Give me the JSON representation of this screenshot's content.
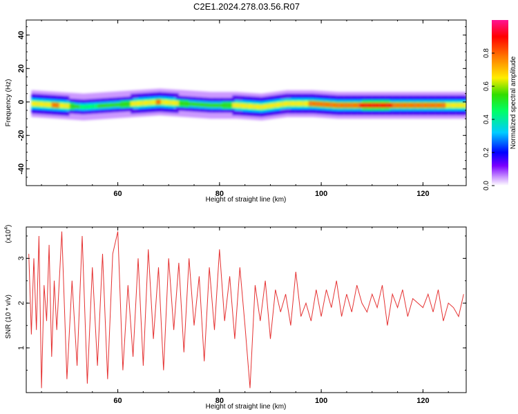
{
  "title": "C2E1.2024.278.03.56.R07",
  "colors": {
    "snr_line": "#e53030",
    "axis": "#000000"
  },
  "chart_data": [
    {
      "type": "heatmap",
      "xlabel": "Height of straight line (km)",
      "ylabel": "Frequency (Hz)",
      "xlim": [
        42,
        128.5
      ],
      "ylim": [
        -50,
        49
      ],
      "x_ticks": [
        "60",
        "80",
        "100",
        "120"
      ],
      "y_ticks": [
        "40",
        "20",
        "0",
        "-20",
        "-40"
      ],
      "colorbar": {
        "label": "Normalized spectral amplitude",
        "range": [
          0,
          1
        ],
        "ticks": [
          "0.0",
          "0.2",
          "0.4",
          "0.6",
          "0.8"
        ],
        "colormap": [
          "#ffffff",
          "#cc99ff",
          "#5500ee",
          "#0000ff",
          "#00ccff",
          "#00ff66",
          "#33dd00",
          "#ffee00",
          "#ff7700",
          "#ff0000",
          "#ff1493"
        ]
      },
      "ridge": {
        "description_free": true,
        "x": [
          43,
          48,
          53,
          58,
          63,
          68,
          73,
          78,
          83,
          88,
          93,
          98,
          103,
          108,
          113,
          118,
          123,
          128
        ],
        "center_hz": [
          -1,
          -2,
          -3,
          -2,
          -1,
          0,
          -1,
          -2,
          -2,
          -3,
          -1,
          -1,
          -2,
          -2,
          -2,
          -2,
          -2,
          -2
        ],
        "peak_amplitude": [
          0.75,
          0.8,
          0.55,
          0.6,
          0.7,
          0.8,
          0.65,
          0.6,
          0.7,
          0.75,
          0.7,
          0.8,
          0.85,
          0.9,
          0.9,
          0.85,
          0.8,
          0.75
        ]
      }
    },
    {
      "type": "line",
      "xlabel": "Height of straight line (km)",
      "ylabel": "SNR (10 * v/v)",
      "scale_note": "(x10",
      "scale_exp": "4",
      "scale_close": ")",
      "xlim": [
        42,
        128.5
      ],
      "ylim": [
        0,
        3.7
      ],
      "x_ticks": [
        "60",
        "80",
        "100",
        "120"
      ],
      "y_ticks": [
        "3",
        "2",
        "1"
      ],
      "series": [
        {
          "x": [
            42.5,
            43,
            43.5,
            44,
            44.5,
            45,
            45.5,
            46,
            46.5,
            47,
            47.5,
            48,
            49,
            50,
            51,
            52,
            53,
            54,
            55,
            56,
            57,
            58,
            59,
            60,
            61,
            62,
            63,
            64,
            65,
            66,
            67,
            68,
            69,
            70,
            71,
            72,
            73,
            74,
            75,
            76,
            77,
            78,
            79,
            80,
            81,
            82,
            83,
            84,
            85,
            86,
            87,
            88,
            89,
            90,
            91,
            92,
            93,
            94,
            95,
            96,
            97,
            98,
            99,
            100,
            101,
            102,
            103,
            104,
            105,
            106,
            107,
            108,
            109,
            110,
            111,
            112,
            113,
            114,
            115,
            116,
            117,
            118,
            119,
            120,
            121,
            122,
            123,
            124,
            125,
            126,
            127,
            128
          ],
          "y": [
            3.1,
            1.3,
            3.0,
            1.4,
            3.5,
            0.1,
            2.4,
            1.6,
            3.3,
            0.8,
            2.5,
            1.4,
            3.6,
            0.3,
            2.5,
            0.6,
            3.5,
            0.2,
            2.8,
            0.6,
            3.1,
            0.3,
            3.1,
            3.6,
            0.5,
            2.4,
            0.8,
            3.0,
            0.6,
            3.2,
            1.2,
            2.8,
            0.5,
            3.0,
            1.4,
            2.9,
            0.9,
            3.0,
            1.5,
            2.6,
            0.7,
            2.8,
            1.4,
            3.2,
            1.6,
            2.6,
            1.2,
            2.8,
            1.5,
            0.1,
            2.4,
            1.6,
            2.5,
            1.2,
            2.3,
            1.8,
            2.2,
            1.5,
            2.7,
            1.7,
            2.0,
            1.6,
            2.3,
            1.7,
            2.3,
            1.9,
            2.5,
            1.7,
            2.2,
            1.8,
            2.4,
            2.0,
            1.8,
            2.2,
            1.9,
            2.4,
            1.5,
            2.2,
            1.9,
            2.3,
            1.7,
            2.1,
            2.0,
            1.9,
            2.2,
            1.8,
            2.3,
            1.6,
            2.0,
            1.9,
            1.7,
            2.2
          ]
        }
      ]
    }
  ]
}
